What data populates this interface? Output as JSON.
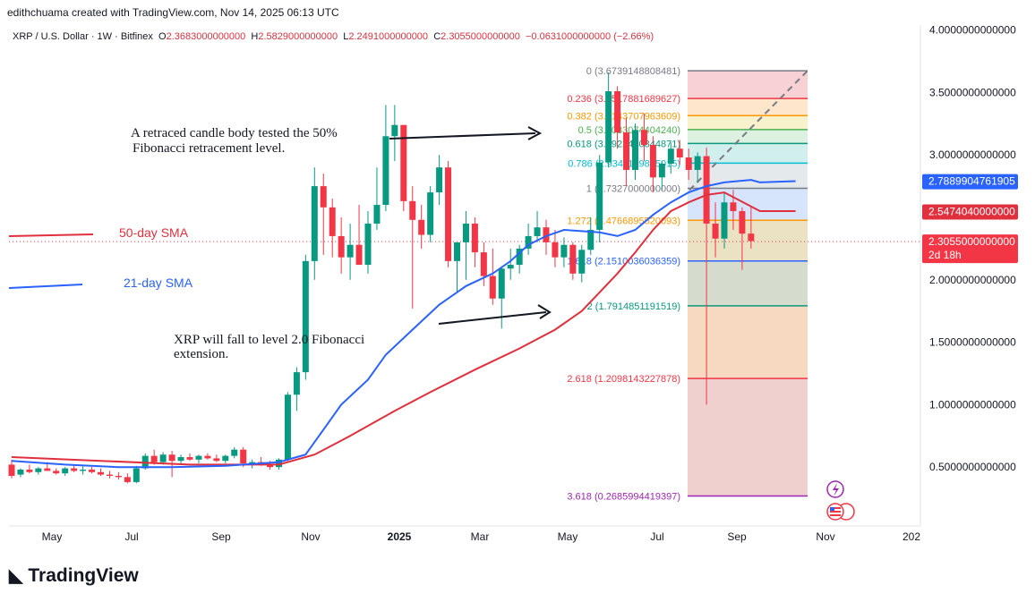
{
  "attribution": "edithchuama created with TradingView.com, Nov 14, 2025 06:13 UTC",
  "header": {
    "symbol": "XRP / U.S. Dollar · 1W · Bitfinex",
    "o_label": "O",
    "o_value": "2.3683000000000",
    "h_label": "H",
    "h_value": "2.5829000000000",
    "l_label": "L",
    "l_value": "2.2491000000000",
    "c_label": "C",
    "c_value": "2.3055000000000",
    "change": "−0.0631000000000 (−2.66%)"
  },
  "logo_text": "TradingView",
  "colors": {
    "up": "#089981",
    "down": "#f23645",
    "sma50": "#e0303e",
    "sma21": "#2962ff",
    "ink": "#131722"
  },
  "chart_data": {
    "type": "candlestick",
    "y_range": [
      0,
      4.0
    ],
    "y_ticks": [
      "4.0000000000000",
      "3.5000000000000",
      "3.0000000000000",
      "2.0000000000000",
      "1.5000000000000",
      "1.0000000000000",
      "0.5000000000000"
    ],
    "x_ticks": [
      "May",
      "Jul",
      "Sep",
      "Nov",
      "2025",
      "Mar",
      "May",
      "Jul",
      "Sep",
      "Nov",
      "202"
    ],
    "price_labels": {
      "sma21": "2.7889904761905",
      "sma50": "2.5474040000000",
      "last": "2.3055000000000",
      "countdown": "2d 18h"
    },
    "candles": [
      {
        "o": 0.52,
        "h": 0.56,
        "l": 0.41,
        "c": 0.43
      },
      {
        "o": 0.44,
        "h": 0.49,
        "l": 0.42,
        "c": 0.48
      },
      {
        "o": 0.48,
        "h": 0.52,
        "l": 0.45,
        "c": 0.46
      },
      {
        "o": 0.46,
        "h": 0.5,
        "l": 0.44,
        "c": 0.49
      },
      {
        "o": 0.49,
        "h": 0.54,
        "l": 0.47,
        "c": 0.47
      },
      {
        "o": 0.47,
        "h": 0.49,
        "l": 0.44,
        "c": 0.45
      },
      {
        "o": 0.45,
        "h": 0.5,
        "l": 0.43,
        "c": 0.49
      },
      {
        "o": 0.49,
        "h": 0.52,
        "l": 0.46,
        "c": 0.47
      },
      {
        "o": 0.47,
        "h": 0.51,
        "l": 0.44,
        "c": 0.48
      },
      {
        "o": 0.48,
        "h": 0.5,
        "l": 0.45,
        "c": 0.46
      },
      {
        "o": 0.46,
        "h": 0.49,
        "l": 0.43,
        "c": 0.44
      },
      {
        "o": 0.44,
        "h": 0.47,
        "l": 0.41,
        "c": 0.43
      },
      {
        "o": 0.43,
        "h": 0.46,
        "l": 0.4,
        "c": 0.42
      },
      {
        "o": 0.42,
        "h": 0.45,
        "l": 0.37,
        "c": 0.38
      },
      {
        "o": 0.38,
        "h": 0.51,
        "l": 0.37,
        "c": 0.49
      },
      {
        "o": 0.49,
        "h": 0.61,
        "l": 0.48,
        "c": 0.59
      },
      {
        "o": 0.59,
        "h": 0.64,
        "l": 0.52,
        "c": 0.54
      },
      {
        "o": 0.54,
        "h": 0.62,
        "l": 0.52,
        "c": 0.6
      },
      {
        "o": 0.6,
        "h": 0.63,
        "l": 0.42,
        "c": 0.55
      },
      {
        "o": 0.55,
        "h": 0.6,
        "l": 0.52,
        "c": 0.58
      },
      {
        "o": 0.58,
        "h": 0.61,
        "l": 0.55,
        "c": 0.56
      },
      {
        "o": 0.56,
        "h": 0.6,
        "l": 0.53,
        "c": 0.59
      },
      {
        "o": 0.59,
        "h": 0.61,
        "l": 0.56,
        "c": 0.57
      },
      {
        "o": 0.57,
        "h": 0.6,
        "l": 0.54,
        "c": 0.55
      },
      {
        "o": 0.55,
        "h": 0.6,
        "l": 0.53,
        "c": 0.59
      },
      {
        "o": 0.59,
        "h": 0.66,
        "l": 0.57,
        "c": 0.64
      },
      {
        "o": 0.64,
        "h": 0.66,
        "l": 0.5,
        "c": 0.53
      },
      {
        "o": 0.53,
        "h": 0.56,
        "l": 0.49,
        "c": 0.54
      },
      {
        "o": 0.54,
        "h": 0.58,
        "l": 0.51,
        "c": 0.52
      },
      {
        "o": 0.52,
        "h": 0.55,
        "l": 0.48,
        "c": 0.5
      },
      {
        "o": 0.5,
        "h": 0.57,
        "l": 0.48,
        "c": 0.56
      },
      {
        "o": 0.56,
        "h": 1.1,
        "l": 0.55,
        "c": 1.08
      },
      {
        "o": 1.08,
        "h": 1.3,
        "l": 0.95,
        "c": 1.26
      },
      {
        "o": 1.26,
        "h": 2.2,
        "l": 1.2,
        "c": 2.15
      },
      {
        "o": 2.15,
        "h": 2.9,
        "l": 2.0,
        "c": 2.75
      },
      {
        "o": 2.75,
        "h": 2.85,
        "l": 2.2,
        "c": 2.58
      },
      {
        "o": 2.58,
        "h": 2.65,
        "l": 2.18,
        "c": 2.35
      },
      {
        "o": 2.35,
        "h": 2.5,
        "l": 2.05,
        "c": 2.18
      },
      {
        "o": 2.18,
        "h": 2.45,
        "l": 2.0,
        "c": 2.28
      },
      {
        "o": 2.28,
        "h": 2.6,
        "l": 2.15,
        "c": 2.12
      },
      {
        "o": 2.12,
        "h": 2.55,
        "l": 2.05,
        "c": 2.45
      },
      {
        "o": 2.45,
        "h": 2.9,
        "l": 2.4,
        "c": 2.6
      },
      {
        "o": 2.6,
        "h": 3.4,
        "l": 2.55,
        "c": 3.15
      },
      {
        "o": 3.15,
        "h": 3.4,
        "l": 2.95,
        "c": 3.24
      },
      {
        "o": 3.24,
        "h": 3.22,
        "l": 2.55,
        "c": 2.63
      },
      {
        "o": 2.63,
        "h": 2.75,
        "l": 1.77,
        "c": 2.48
      },
      {
        "o": 2.48,
        "h": 2.6,
        "l": 2.25,
        "c": 2.36
      },
      {
        "o": 2.36,
        "h": 2.75,
        "l": 2.3,
        "c": 2.7
      },
      {
        "o": 2.7,
        "h": 3.0,
        "l": 2.6,
        "c": 2.9
      },
      {
        "o": 2.9,
        "h": 2.95,
        "l": 2.1,
        "c": 2.15
      },
      {
        "o": 2.15,
        "h": 2.3,
        "l": 1.9,
        "c": 2.3
      },
      {
        "o": 2.3,
        "h": 2.55,
        "l": 2.0,
        "c": 2.45
      },
      {
        "o": 2.45,
        "h": 2.5,
        "l": 2.1,
        "c": 2.22
      },
      {
        "o": 2.22,
        "h": 2.3,
        "l": 1.95,
        "c": 2.03
      },
      {
        "o": 2.03,
        "h": 2.25,
        "l": 1.8,
        "c": 1.85
      },
      {
        "o": 1.85,
        "h": 2.1,
        "l": 1.61,
        "c": 2.09
      },
      {
        "o": 2.09,
        "h": 2.25,
        "l": 2.0,
        "c": 2.12
      },
      {
        "o": 2.12,
        "h": 2.28,
        "l": 2.05,
        "c": 2.25
      },
      {
        "o": 2.25,
        "h": 2.45,
        "l": 2.2,
        "c": 2.35
      },
      {
        "o": 2.35,
        "h": 2.55,
        "l": 2.3,
        "c": 2.42
      },
      {
        "o": 2.42,
        "h": 2.48,
        "l": 2.2,
        "c": 2.3
      },
      {
        "o": 2.3,
        "h": 2.4,
        "l": 2.1,
        "c": 2.18
      },
      {
        "o": 2.18,
        "h": 2.34,
        "l": 2.1,
        "c": 2.28
      },
      {
        "o": 2.28,
        "h": 2.3,
        "l": 2.0,
        "c": 2.05
      },
      {
        "o": 2.05,
        "h": 2.28,
        "l": 1.98,
        "c": 2.24
      },
      {
        "o": 2.24,
        "h": 2.5,
        "l": 2.2,
        "c": 2.4
      },
      {
        "o": 2.4,
        "h": 3.0,
        "l": 2.3,
        "c": 2.94
      },
      {
        "o": 2.94,
        "h": 3.66,
        "l": 2.9,
        "c": 3.51
      },
      {
        "o": 3.51,
        "h": 3.55,
        "l": 3.05,
        "c": 3.18
      },
      {
        "o": 3.18,
        "h": 3.3,
        "l": 2.75,
        "c": 2.88
      },
      {
        "o": 2.88,
        "h": 3.25,
        "l": 2.8,
        "c": 3.2
      },
      {
        "o": 3.2,
        "h": 3.33,
        "l": 2.95,
        "c": 3.08
      },
      {
        "o": 3.08,
        "h": 3.15,
        "l": 2.7,
        "c": 2.82
      },
      {
        "o": 2.82,
        "h": 2.95,
        "l": 2.72,
        "c": 2.93
      },
      {
        "o": 2.93,
        "h": 3.1,
        "l": 2.85,
        "c": 3.05
      },
      {
        "o": 3.05,
        "h": 3.12,
        "l": 2.92,
        "c": 2.98
      },
      {
        "o": 2.98,
        "h": 3.05,
        "l": 2.8,
        "c": 2.88
      },
      {
        "o": 2.88,
        "h": 3.02,
        "l": 2.78,
        "c": 2.99
      },
      {
        "o": 2.99,
        "h": 3.06,
        "l": 1.0,
        "c": 2.45
      },
      {
        "o": 2.45,
        "h": 2.62,
        "l": 2.18,
        "c": 2.33
      },
      {
        "o": 2.33,
        "h": 2.7,
        "l": 2.25,
        "c": 2.62
      },
      {
        "o": 2.62,
        "h": 2.72,
        "l": 2.4,
        "c": 2.55
      },
      {
        "o": 2.55,
        "h": 2.58,
        "l": 2.08,
        "c": 2.37
      },
      {
        "o": 2.37,
        "h": 2.58,
        "l": 2.25,
        "c": 2.31
      }
    ],
    "sma21": [
      [
        0.55,
        0
      ],
      [
        0.52,
        6
      ],
      [
        0.5,
        12
      ],
      [
        0.5,
        18
      ],
      [
        0.51,
        24
      ],
      [
        0.54,
        30
      ],
      [
        0.6,
        33
      ],
      [
        0.8,
        35
      ],
      [
        1.0,
        37
      ],
      [
        1.2,
        40
      ],
      [
        1.4,
        42
      ],
      [
        1.6,
        45
      ],
      [
        1.8,
        48
      ],
      [
        1.95,
        51
      ],
      [
        2.05,
        54
      ],
      [
        2.15,
        56
      ],
      [
        2.28,
        58
      ],
      [
        2.35,
        60
      ],
      [
        2.4,
        62
      ],
      [
        2.38,
        66
      ],
      [
        2.35,
        68
      ],
      [
        2.4,
        70
      ],
      [
        2.52,
        72
      ],
      [
        2.62,
        74
      ],
      [
        2.7,
        76
      ],
      [
        2.75,
        78
      ],
      [
        2.78,
        80
      ],
      [
        2.8,
        83
      ],
      [
        2.78,
        84
      ],
      [
        2.79,
        88
      ]
    ],
    "sma50": [
      [
        0.58,
        0
      ],
      [
        0.55,
        10
      ],
      [
        0.52,
        20
      ],
      [
        0.52,
        30
      ],
      [
        0.6,
        34
      ],
      [
        0.75,
        38
      ],
      [
        0.95,
        43
      ],
      [
        1.1,
        47
      ],
      [
        1.28,
        52
      ],
      [
        1.45,
        57
      ],
      [
        1.6,
        61
      ],
      [
        1.75,
        64
      ],
      [
        1.9,
        66
      ],
      [
        2.05,
        68
      ],
      [
        2.22,
        70
      ],
      [
        2.4,
        72
      ],
      [
        2.55,
        74
      ],
      [
        2.62,
        76
      ],
      [
        2.68,
        78
      ],
      [
        2.7,
        80
      ],
      [
        2.55,
        84
      ],
      [
        2.55,
        87
      ],
      [
        2.55,
        88
      ]
    ],
    "sma_labels": {
      "sma50": "50-day SMA",
      "sma21": "21-day SMA"
    },
    "fib": [
      {
        "label": "0 (3.6739148808481)",
        "value": 3.6739,
        "color": "#787b86"
      },
      {
        "label": "0.236 (3.4517881689627)",
        "value": 3.4518,
        "color": "#f23645"
      },
      {
        "label": "0.382 (3.3143707963609)",
        "value": 3.3144,
        "color": "#ff9800"
      },
      {
        "label": "0.5 (3.2033074404240)",
        "value": 3.2033,
        "color": "#4caf50"
      },
      {
        "label": "0.618 (3.0922440844871)",
        "value": 3.0922,
        "color": "#089981"
      },
      {
        "label": "0.786 (2.9341199845015)",
        "value": 2.9341,
        "color": "#00bcd4"
      },
      {
        "label": "1 (2.7327000000000)",
        "value": 2.7327,
        "color": "#787b86"
      },
      {
        "label": "1.272 (2.4766895520093)",
        "value": 2.4767,
        "color": "#ff9800"
      },
      {
        "label": "1.618 (2.1510036036359)",
        "value": 2.151,
        "color": "#2962ff"
      },
      {
        "label": "2 (1.7914851191519)",
        "value": 1.7915,
        "color": "#089981"
      },
      {
        "label": "2.618 (1.2098143227878)",
        "value": 1.2098,
        "color": "#f23645"
      },
      {
        "label": "3.618 (0.2685994419397)",
        "value": 0.2686,
        "color": "#9c27b0"
      }
    ],
    "annotations": [
      "A retraced candle body tested the 50%",
      "Fibonacci retracement level.",
      "XRP  will fall to level 2.0 Fibonacci",
      "extension."
    ]
  }
}
